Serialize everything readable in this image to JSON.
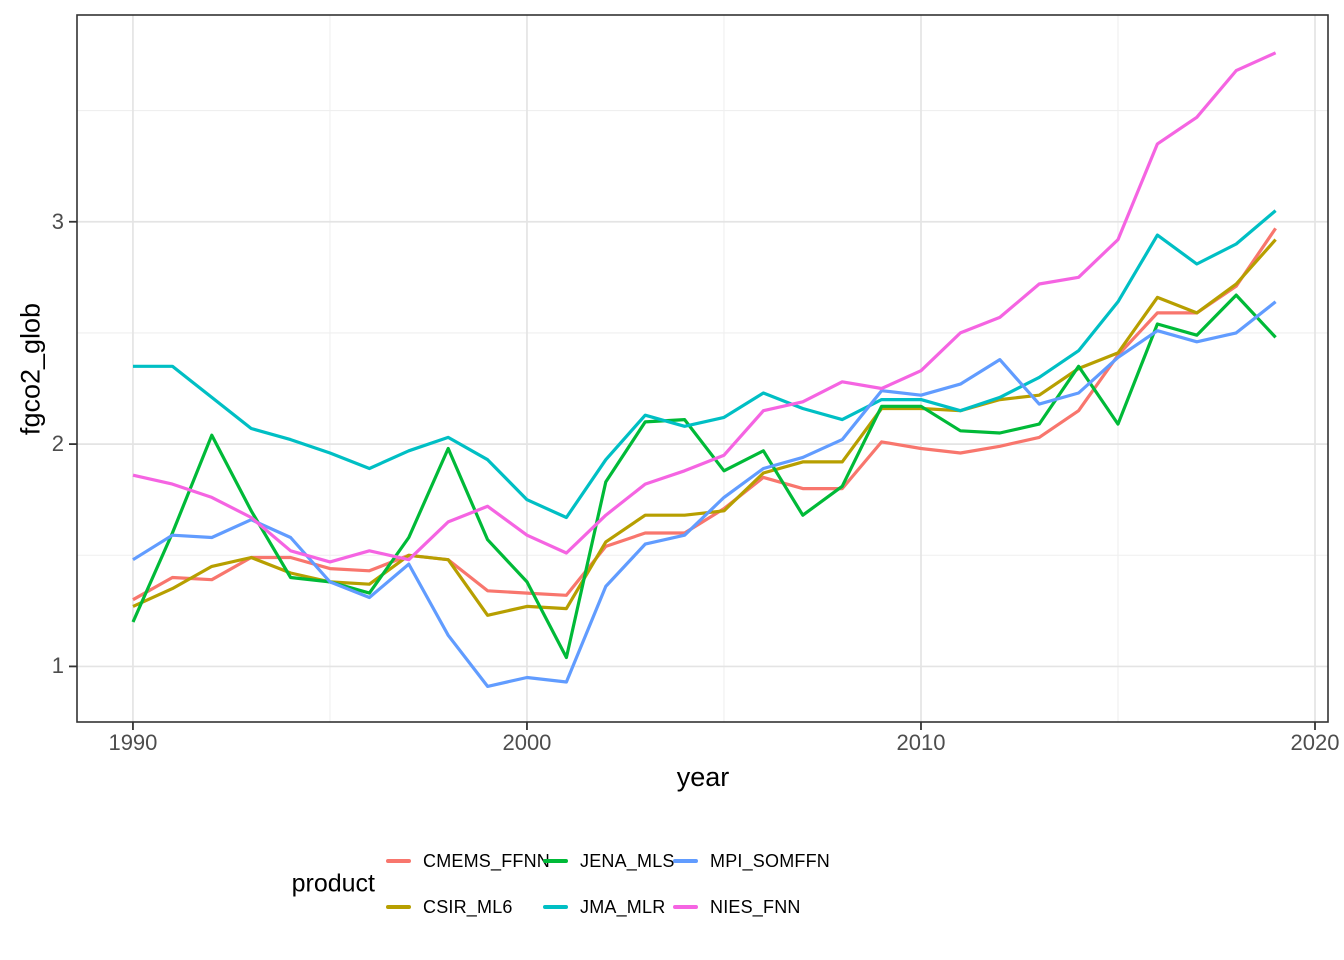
{
  "chart_data": {
    "type": "line",
    "title": "",
    "xlabel": "year",
    "ylabel": "fgco2_glob",
    "legend_title": "product",
    "legend_position": "bottom",
    "grid": true,
    "xlim": [
      1988.58,
      2020.33
    ],
    "ylim": [
      0.75,
      3.93
    ],
    "x_ticks": {
      "major": [
        1990,
        2000,
        2010,
        2020
      ],
      "minor": [
        1995,
        2005,
        2015
      ],
      "labels": [
        "1990",
        "2000",
        "2010",
        "2020"
      ]
    },
    "y_ticks": {
      "major": [
        1,
        2,
        3
      ],
      "minor": [
        1.5,
        2.5,
        3.5
      ],
      "labels": [
        "1",
        "2",
        "3"
      ]
    },
    "x": [
      1990,
      1991,
      1992,
      1993,
      1994,
      1995,
      1996,
      1997,
      1998,
      1999,
      2000,
      2001,
      2002,
      2003,
      2004,
      2005,
      2006,
      2007,
      2008,
      2009,
      2010,
      2011,
      2012,
      2013,
      2014,
      2015,
      2016,
      2017,
      2018,
      2019
    ],
    "series": [
      {
        "name": "CMEMS_FFNN",
        "color": "#F8766D",
        "values": [
          1.3,
          1.4,
          1.39,
          1.49,
          1.49,
          1.44,
          1.43,
          1.5,
          1.48,
          1.34,
          1.33,
          1.32,
          1.54,
          1.6,
          1.6,
          1.71,
          1.85,
          1.8,
          1.8,
          2.01,
          1.98,
          1.96,
          1.99,
          2.03,
          2.15,
          2.4,
          2.59,
          2.59,
          2.71,
          2.97
        ]
      },
      {
        "name": "CSIR_ML6",
        "color": "#B79F00",
        "values": [
          1.27,
          1.35,
          1.45,
          1.49,
          1.42,
          1.38,
          1.37,
          1.5,
          1.48,
          1.23,
          1.27,
          1.26,
          1.56,
          1.68,
          1.68,
          1.7,
          1.87,
          1.92,
          1.92,
          2.16,
          2.16,
          2.15,
          2.2,
          2.22,
          2.34,
          2.41,
          2.66,
          2.59,
          2.72,
          2.92
        ]
      },
      {
        "name": "JENA_MLS",
        "color": "#00BA38",
        "values": [
          1.2,
          1.6,
          2.04,
          1.7,
          1.4,
          1.38,
          1.33,
          1.58,
          1.98,
          1.57,
          1.38,
          1.04,
          1.83,
          2.1,
          2.11,
          1.88,
          1.97,
          1.68,
          1.81,
          2.17,
          2.17,
          2.06,
          2.05,
          2.09,
          2.35,
          2.09,
          2.54,
          2.49,
          2.67,
          2.48
        ]
      },
      {
        "name": "JMA_MLR",
        "color": "#00BFC4",
        "values": [
          2.35,
          2.35,
          2.21,
          2.07,
          2.02,
          1.96,
          1.89,
          1.97,
          2.03,
          1.93,
          1.75,
          1.67,
          1.93,
          2.13,
          2.08,
          2.12,
          2.23,
          2.16,
          2.11,
          2.2,
          2.2,
          2.15,
          2.21,
          2.3,
          2.42,
          2.64,
          2.94,
          2.81,
          2.9,
          3.05
        ]
      },
      {
        "name": "MPI_SOMFFN",
        "color": "#619CFF",
        "values": [
          1.48,
          1.59,
          1.58,
          1.66,
          1.58,
          1.38,
          1.31,
          1.46,
          1.14,
          0.91,
          0.95,
          0.93,
          1.36,
          1.55,
          1.59,
          1.76,
          1.89,
          1.94,
          2.02,
          2.24,
          2.22,
          2.27,
          2.38,
          2.18,
          2.23,
          2.39,
          2.51,
          2.46,
          2.5,
          2.64
        ]
      },
      {
        "name": "NIES_FNN",
        "color": "#F564E2",
        "values": [
          1.86,
          1.82,
          1.76,
          1.67,
          1.52,
          1.47,
          1.52,
          1.48,
          1.65,
          1.72,
          1.59,
          1.51,
          1.68,
          1.82,
          1.88,
          1.95,
          2.15,
          2.19,
          2.28,
          2.25,
          2.33,
          2.5,
          2.57,
          2.72,
          2.75,
          2.92,
          3.35,
          3.47,
          3.68,
          3.76
        ]
      }
    ],
    "styles": {
      "background": "#FFFFFF",
      "grid_major": "#E4E4E4",
      "grid_minor": "#EFEFEF",
      "panel_border": "#333333",
      "tick_mark": "#333333",
      "tick_label_color": "#4D4D4D",
      "line_width": 3.2
    }
  }
}
